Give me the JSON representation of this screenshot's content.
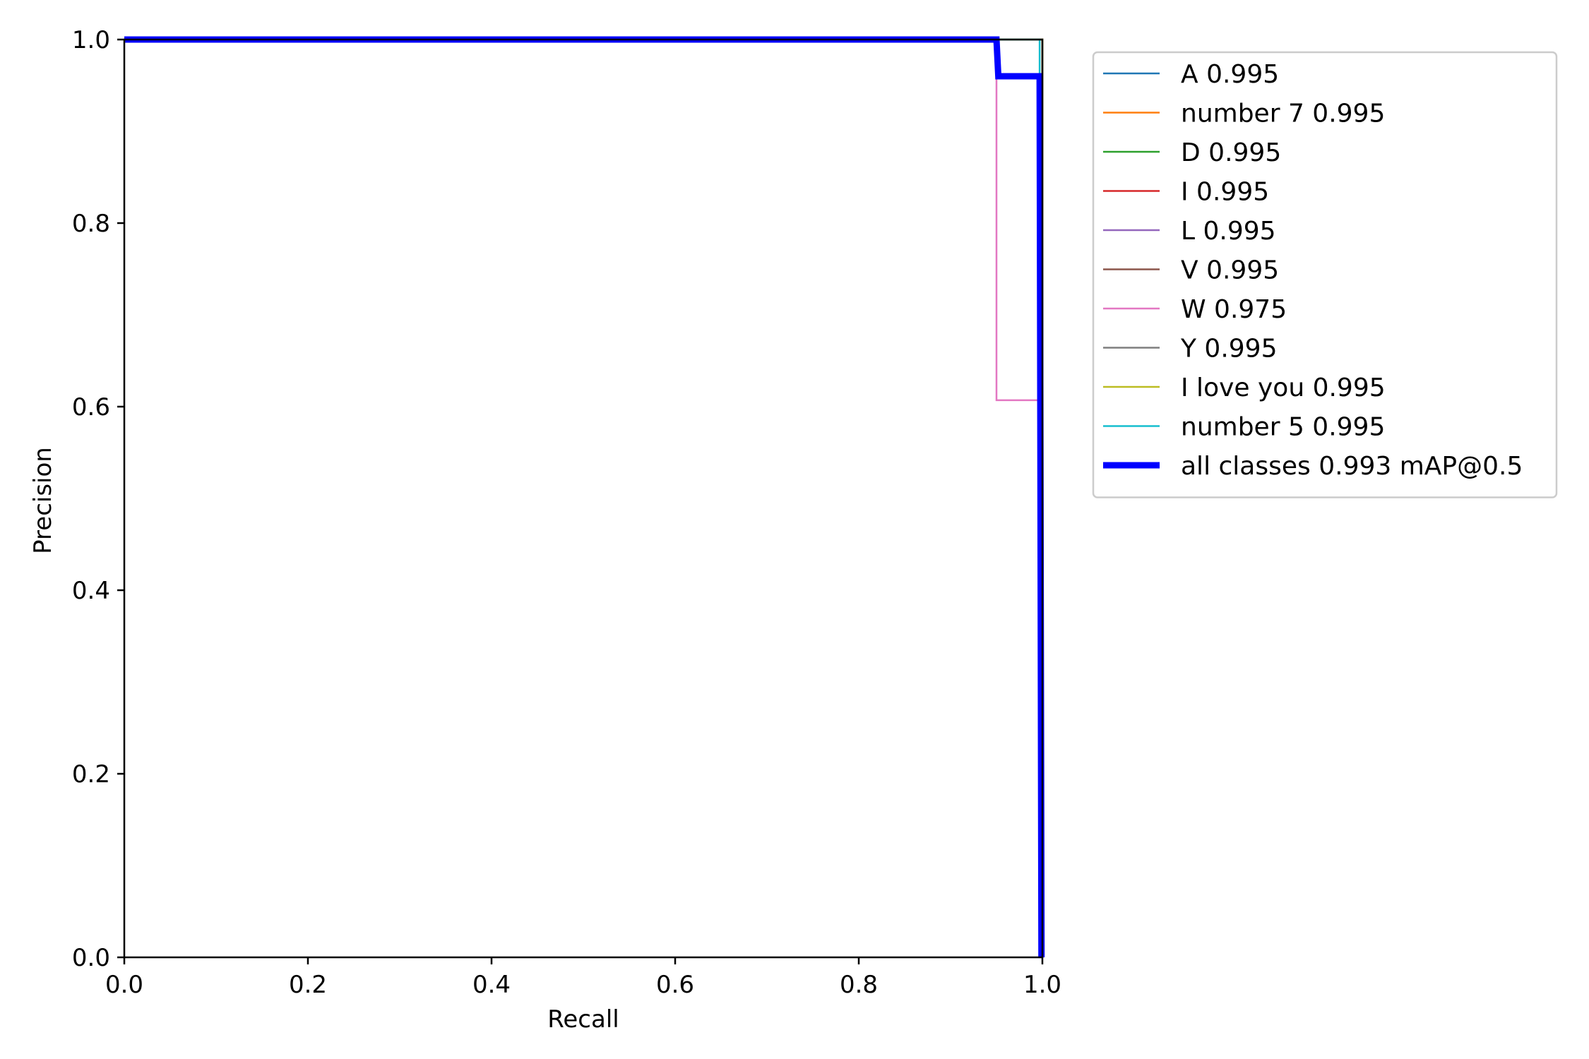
{
  "chart_data": {
    "type": "line",
    "title": "",
    "xlabel": "Recall",
    "ylabel": "Precision",
    "xlim": [
      0,
      1
    ],
    "ylim": [
      0,
      1
    ],
    "x_ticks": [
      "0.0",
      "0.2",
      "0.4",
      "0.6",
      "0.8",
      "1.0"
    ],
    "y_ticks": [
      "0.0",
      "0.2",
      "0.4",
      "0.6",
      "0.8",
      "1.0"
    ],
    "grid": false,
    "legend_position": "outside-right-top",
    "series": [
      {
        "label": "A 0.995",
        "color": "#1f77b4",
        "x": [
          0,
          1.0,
          1.0
        ],
        "y": [
          1.0,
          1.0,
          0.0
        ]
      },
      {
        "label": "number 7 0.995",
        "color": "#ff7f0e",
        "x": [
          0,
          1.0,
          1.0
        ],
        "y": [
          1.0,
          1.0,
          0.0
        ]
      },
      {
        "label": "D 0.995",
        "color": "#2ca02c",
        "x": [
          0,
          1.0,
          1.0
        ],
        "y": [
          1.0,
          1.0,
          0.0
        ]
      },
      {
        "label": "I 0.995",
        "color": "#d62728",
        "x": [
          0,
          1.0,
          1.0
        ],
        "y": [
          1.0,
          1.0,
          0.0
        ]
      },
      {
        "label": "L 0.995",
        "color": "#9467bd",
        "x": [
          0,
          1.0,
          1.0
        ],
        "y": [
          1.0,
          1.0,
          0.0
        ]
      },
      {
        "label": "V 0.995",
        "color": "#8c564b",
        "x": [
          0,
          1.0,
          1.0
        ],
        "y": [
          1.0,
          1.0,
          0.0
        ]
      },
      {
        "label": "W 0.975",
        "color": "#e377c2",
        "x": [
          0,
          0.95,
          0.95,
          0.997,
          0.997
        ],
        "y": [
          1.0,
          1.0,
          0.607,
          0.607,
          0.0
        ]
      },
      {
        "label": "Y 0.995",
        "color": "#7f7f7f",
        "x": [
          0,
          1.0,
          1.0
        ],
        "y": [
          1.0,
          1.0,
          0.0
        ]
      },
      {
        "label": "I love you 0.995",
        "color": "#bcbd22",
        "x": [
          0,
          1.0,
          1.0
        ],
        "y": [
          1.0,
          1.0,
          0.0
        ]
      },
      {
        "label": "number 5 0.995",
        "color": "#17becf",
        "x": [
          0,
          0.997,
          0.997,
          0.997
        ],
        "y": [
          1.0,
          1.0,
          0.96,
          0.0
        ]
      },
      {
        "label": "all classes 0.993 mAP@0.5",
        "color": "#0000ff",
        "thick": true,
        "x": [
          0,
          0.95,
          0.952,
          0.997,
          0.999
        ],
        "y": [
          1.0,
          1.0,
          0.96,
          0.96,
          0.0
        ]
      }
    ]
  }
}
